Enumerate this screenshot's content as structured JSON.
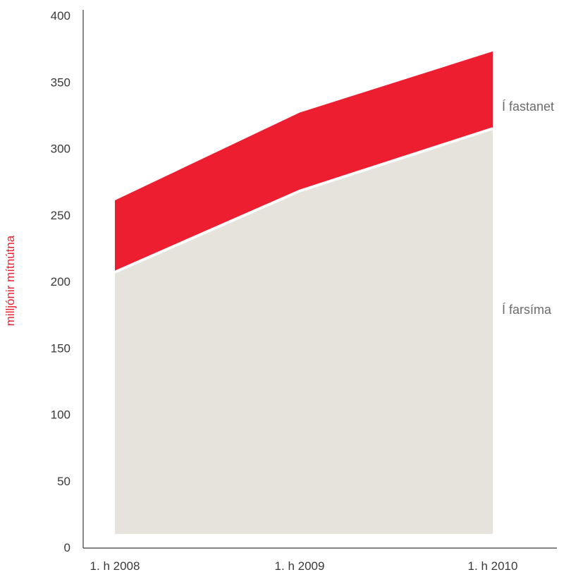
{
  "chart_data": {
    "type": "area",
    "stacked": true,
    "ylabel": "milljónir mítnútna",
    "categories": [
      "1. h 2008",
      "1. h 2009",
      "1. h 2010"
    ],
    "y_ticks": [
      "0",
      "50",
      "100",
      "150",
      "200",
      "250",
      "300",
      "350",
      "400"
    ],
    "ylim": [
      0,
      400
    ],
    "series": [
      {
        "name": "Í farsíma",
        "values": [
          207,
          268,
          315
        ],
        "color": "#e6e2dc"
      },
      {
        "name": "Í fastanet",
        "values": [
          54,
          59,
          58
        ],
        "color": "#ee1e31"
      }
    ],
    "area_floor": 10,
    "grid": false,
    "legend_placement": "right, inline labels",
    "colors": {
      "axis": "#3a3a3a",
      "ylabel": "#ee1e31",
      "separator": "#ffffff"
    }
  }
}
